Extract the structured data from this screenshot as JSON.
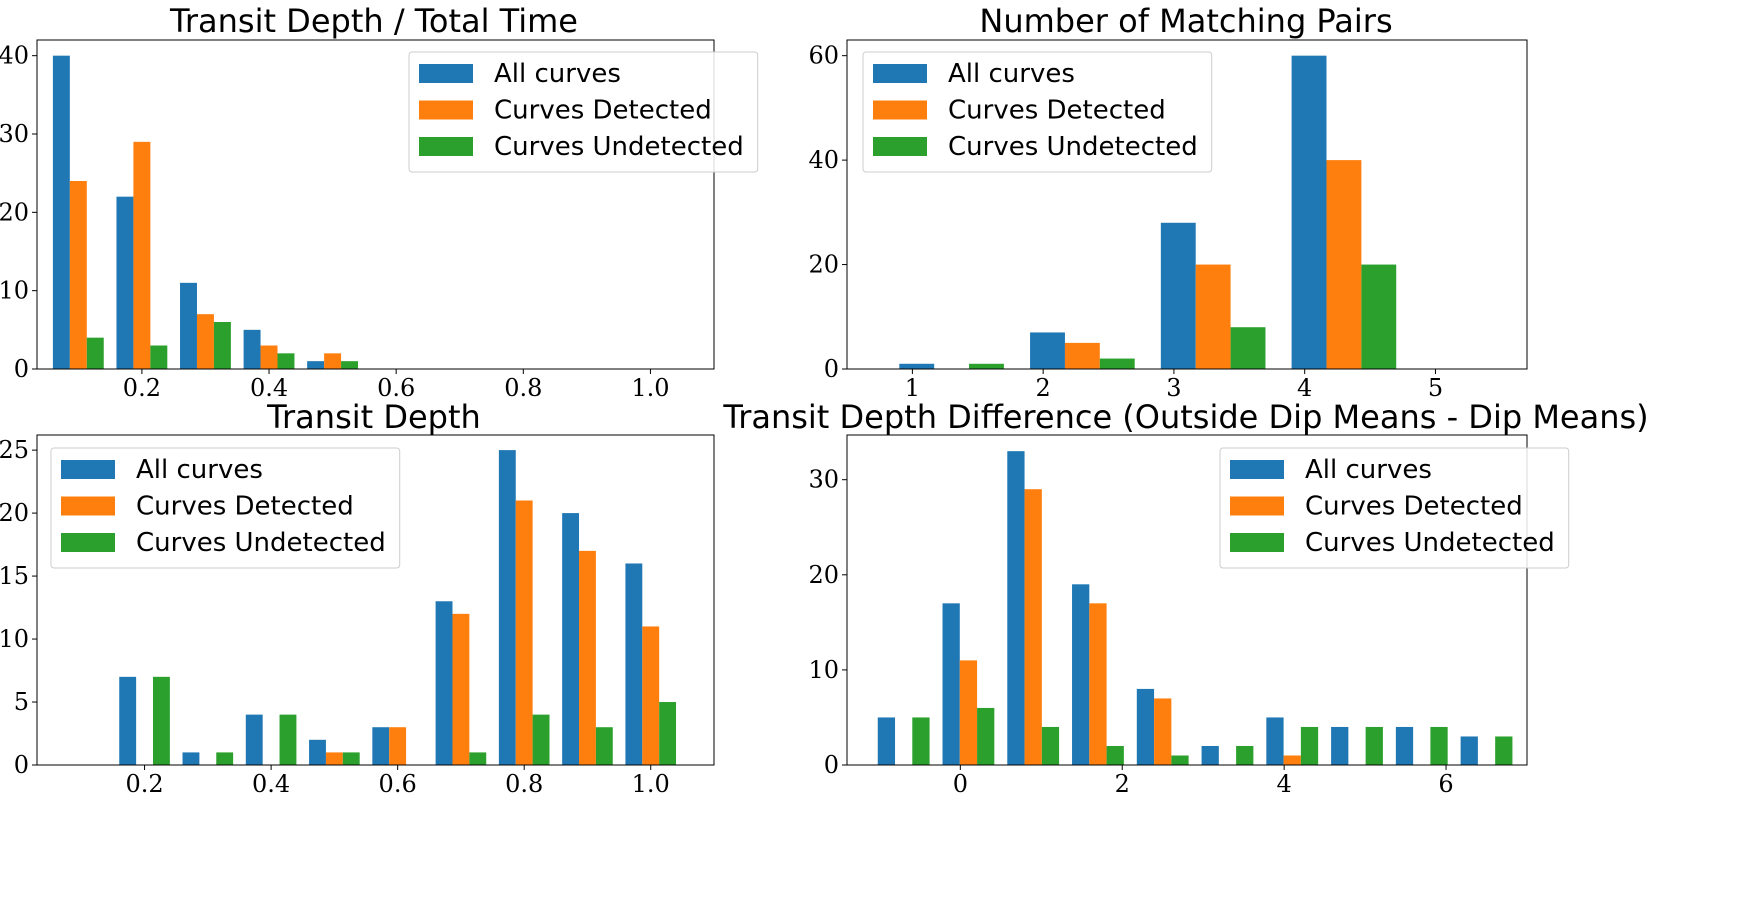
{
  "colors": {
    "All curves": "#1f77b4",
    "Curves Detected": "#ff7f0e",
    "Curves Undetected": "#2ca02c"
  },
  "chart_data": [
    {
      "type": "bar",
      "title": "Transit Depth / Total Time",
      "xlim": [
        0.035,
        1.1
      ],
      "ylim": [
        0,
        42
      ],
      "xticks": [
        0.2,
        0.4,
        0.6,
        0.8,
        1.0
      ],
      "xtick_labels": [
        "0.2",
        "0.4",
        "0.6",
        "0.8",
        "1.0"
      ],
      "yticks": [
        0,
        10,
        20,
        30,
        40
      ],
      "legend_loc": "upper right",
      "bin_edges": [
        0.05,
        0.15,
        0.25,
        0.35,
        0.45,
        0.55,
        0.65,
        0.75,
        0.85,
        0.95,
        1.05
      ],
      "series": [
        {
          "name": "All curves",
          "values": [
            40,
            22,
            11,
            5,
            1,
            0,
            0,
            0,
            0,
            0
          ]
        },
        {
          "name": "Curves Detected",
          "values": [
            24,
            29,
            7,
            3,
            2,
            0,
            0,
            0,
            0,
            0
          ]
        },
        {
          "name": "Curves Undetected",
          "values": [
            4,
            3,
            6,
            2,
            1,
            0,
            0,
            0,
            0,
            0
          ]
        }
      ]
    },
    {
      "type": "bar",
      "title": "Number of Matching Pairs",
      "xlim": [
        0.5,
        5.7
      ],
      "ylim": [
        0,
        63
      ],
      "xticks": [
        1,
        2,
        3,
        4,
        5
      ],
      "xtick_labels": [
        "1",
        "2",
        "3",
        "4",
        "5"
      ],
      "yticks": [
        0,
        20,
        40,
        60
      ],
      "legend_loc": "upper left",
      "bin_edges": [
        0.8,
        1.8,
        2.8,
        3.8,
        4.8,
        5.8
      ],
      "series": [
        {
          "name": "All curves",
          "values": [
            1,
            7,
            28,
            60,
            0
          ]
        },
        {
          "name": "Curves Detected",
          "values": [
            0,
            5,
            20,
            40,
            0
          ]
        },
        {
          "name": "Curves Undetected",
          "values": [
            1,
            2,
            8,
            20,
            0
          ]
        }
      ]
    },
    {
      "type": "bar",
      "title": "Transit Depth",
      "xlim": [
        0.03,
        1.1
      ],
      "ylim": [
        0,
        26.2
      ],
      "xticks": [
        0.2,
        0.4,
        0.6,
        0.8,
        1.0
      ],
      "xtick_labels": [
        "0.2",
        "0.4",
        "0.6",
        "0.8",
        "1.0"
      ],
      "yticks": [
        0,
        5,
        10,
        15,
        20,
        25
      ],
      "legend_loc": "upper left",
      "bin_edges": [
        0.05,
        0.15,
        0.25,
        0.35,
        0.45,
        0.55,
        0.65,
        0.75,
        0.85,
        0.95,
        1.05
      ],
      "series": [
        {
          "name": "All curves",
          "values": [
            0,
            7,
            1,
            4,
            2,
            3,
            13,
            25,
            20,
            16
          ]
        },
        {
          "name": "Curves Detected",
          "values": [
            0,
            0,
            0,
            0,
            1,
            3,
            12,
            21,
            17,
            11
          ]
        },
        {
          "name": "Curves Undetected",
          "values": [
            0,
            7,
            1,
            4,
            1,
            0,
            1,
            4,
            3,
            5
          ]
        }
      ]
    },
    {
      "type": "bar",
      "title": "Transit Depth Difference (Outside Dip Means - Dip Means)",
      "xlim": [
        -1.4,
        7.0
      ],
      "ylim": [
        0,
        34.7
      ],
      "xticks": [
        0,
        2,
        4,
        6
      ],
      "xtick_labels": [
        "0",
        "2",
        "4",
        "6"
      ],
      "yticks": [
        0,
        10,
        20,
        30
      ],
      "legend_loc": "upper right",
      "bin_edges": [
        -1.1,
        -0.3,
        0.5,
        1.3,
        2.1,
        2.9,
        3.7,
        4.5,
        5.3,
        6.1,
        6.9
      ],
      "series": [
        {
          "name": "All curves",
          "values": [
            5,
            17,
            33,
            19,
            8,
            2,
            5,
            4,
            4,
            3
          ]
        },
        {
          "name": "Curves Detected",
          "values": [
            0,
            11,
            29,
            17,
            7,
            0,
            1,
            0,
            0,
            0
          ]
        },
        {
          "name": "Curves Undetected",
          "values": [
            5,
            6,
            4,
            2,
            1,
            2,
            4,
            4,
            4,
            3
          ]
        }
      ]
    }
  ]
}
